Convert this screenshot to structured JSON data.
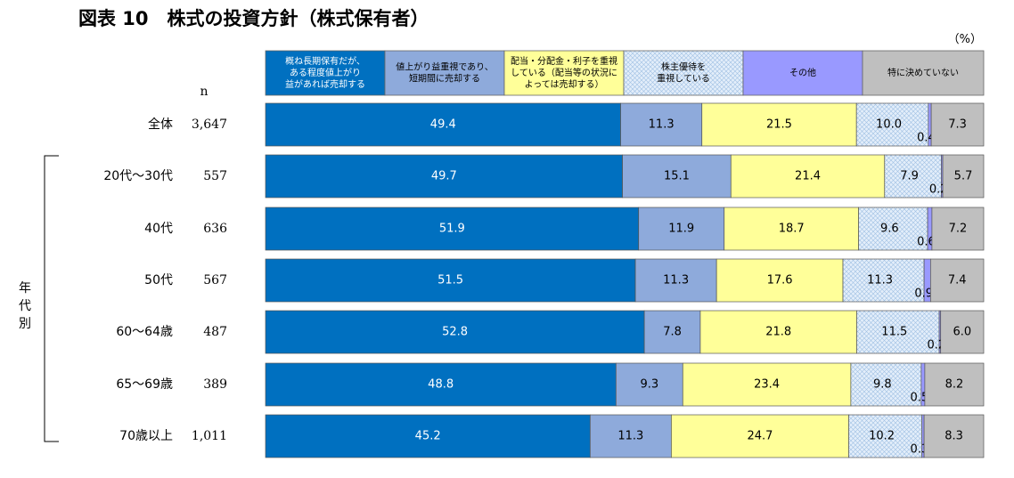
{
  "chart_data": {
    "type": "bar",
    "orientation": "horizontal",
    "stacked": true,
    "percent": true,
    "title": "図表 10　株式の投資方針（株式保有者）",
    "unit": "（%）",
    "n_header": "n",
    "group_label": "年代別",
    "categories": [
      "全体",
      "20代～30代",
      "40代",
      "50代",
      "60～64歳",
      "65～69歳",
      "70歳以上"
    ],
    "n_values": [
      "3,647",
      "557",
      "636",
      "567",
      "487",
      "389",
      "1,011"
    ],
    "series": [
      {
        "name": "概ね長期保有だが、ある程度値上がり益があれば売却する",
        "name_lines": [
          "概ね長期保有だが、",
          "ある程度値上がり",
          "益があれば売却する"
        ],
        "color": "#0070c0",
        "pattern": false,
        "values": [
          49.4,
          49.7,
          51.9,
          51.5,
          52.8,
          48.8,
          45.2
        ]
      },
      {
        "name": "値上がり益重視であり、短期間に売却する",
        "name_lines": [
          "値上がり益重視であり、",
          "短期間に売却する"
        ],
        "color": "#8eaadb",
        "pattern": false,
        "values": [
          11.3,
          15.1,
          11.9,
          11.3,
          7.8,
          9.3,
          11.3
        ]
      },
      {
        "name": "配当・分配金・利子を重視している（配当等の状況によっては売却する）",
        "name_lines": [
          "配当・分配金・利子を重視",
          "している（配当等の状況に",
          "よっては売却する）"
        ],
        "color": "#ffff99",
        "pattern": false,
        "values": [
          21.5,
          21.4,
          18.7,
          17.6,
          21.8,
          23.4,
          24.7
        ]
      },
      {
        "name": "株主優待を重視している",
        "name_lines": [
          "株主優待を",
          "重視している"
        ],
        "color": "#dce9f7",
        "pattern": true,
        "values": [
          10.0,
          7.9,
          9.6,
          11.3,
          11.5,
          9.8,
          10.2
        ]
      },
      {
        "name": "その他",
        "name_lines": [
          "その他"
        ],
        "color": "#9999ff",
        "pattern": false,
        "values": [
          0.4,
          0.2,
          0.6,
          0.9,
          0.2,
          0.5,
          0.3
        ]
      },
      {
        "name": "特に決めていない",
        "name_lines": [
          "特に決めていない"
        ],
        "color": "#bfbfbf",
        "pattern": false,
        "values": [
          7.3,
          5.7,
          7.2,
          7.4,
          6.0,
          8.2,
          8.3
        ]
      }
    ]
  }
}
